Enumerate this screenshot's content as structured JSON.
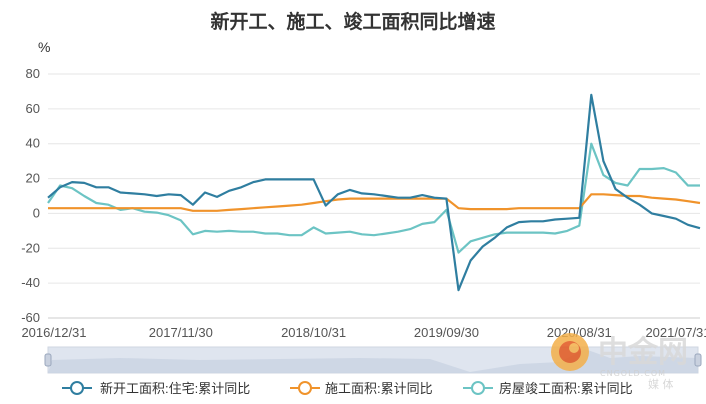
{
  "chart_data": {
    "type": "line",
    "title": "新开工、施工、竣工面积同比增速",
    "ylabel": "%",
    "ylim": [
      -60,
      80
    ],
    "y_ticks": [
      -60,
      -40,
      -20,
      0,
      20,
      40,
      60,
      80
    ],
    "x_tick_labels": [
      "2016/12/31",
      "2017/11/30",
      "2018/10/31",
      "2019/09/30",
      "2020/08/31",
      "2021/07/31"
    ],
    "grid": true,
    "legend_position": "bottom",
    "series": [
      {
        "name": "新开工面积:住宅:累计同比",
        "color": "#2f7ea0",
        "values": [
          9,
          15,
          18,
          17.5,
          15,
          15,
          12,
          11.5,
          11,
          10,
          11,
          10.5,
          5,
          12,
          9.5,
          13,
          15,
          18,
          19.5,
          19.5,
          19.5,
          19.5,
          19.5,
          4.5,
          11,
          13.5,
          11.5,
          11,
          10,
          9,
          9,
          10.5,
          9,
          8.5,
          -44,
          -27,
          -19,
          -14,
          -8,
          -5,
          -4.5,
          -4.5,
          -3.5,
          -3,
          -2.5,
          68,
          30,
          14,
          9,
          5,
          0,
          -1.5,
          -3,
          -6.5,
          -8.5
        ]
      },
      {
        "name": "施工面积:累计同比",
        "color": "#f0932b",
        "values": [
          3,
          3,
          3,
          3,
          3,
          3,
          3,
          3,
          3,
          3,
          3,
          3,
          1.5,
          1.5,
          1.5,
          2,
          2.5,
          3,
          3.5,
          4,
          4.5,
          5,
          6,
          7,
          8,
          8.5,
          8.5,
          8.5,
          8.5,
          8.5,
          8.5,
          8.5,
          8.5,
          8.5,
          3,
          2.5,
          2.5,
          2.5,
          2.5,
          3,
          3,
          3,
          3,
          3,
          3,
          11,
          11,
          10.5,
          10,
          10,
          9,
          8.5,
          8,
          7,
          6
        ]
      },
      {
        "name": "房屋竣工面积:累计同比",
        "color": "#6cc4c4",
        "values": [
          6,
          16,
          14.5,
          10,
          6,
          5,
          2,
          3,
          1,
          0.5,
          -1,
          -4,
          -12,
          -10,
          -10.5,
          -10,
          -10.5,
          -10.5,
          -11.5,
          -11.5,
          -12.5,
          -12.5,
          -8,
          -11.5,
          -11,
          -10.5,
          -12,
          -12.5,
          -11.5,
          -10.5,
          -9,
          -6,
          -5,
          2,
          -22.5,
          -16,
          -14,
          -12,
          -11,
          -11,
          -11,
          -11,
          -11.5,
          -10,
          -7,
          40,
          22,
          17.5,
          16,
          25.5,
          25.5,
          26,
          23.5,
          16,
          16
        ]
      }
    ]
  },
  "watermark": {
    "logo_text": "中金网",
    "site_text": "CNGOLD.COM",
    "sub_text": "媒  体"
  }
}
